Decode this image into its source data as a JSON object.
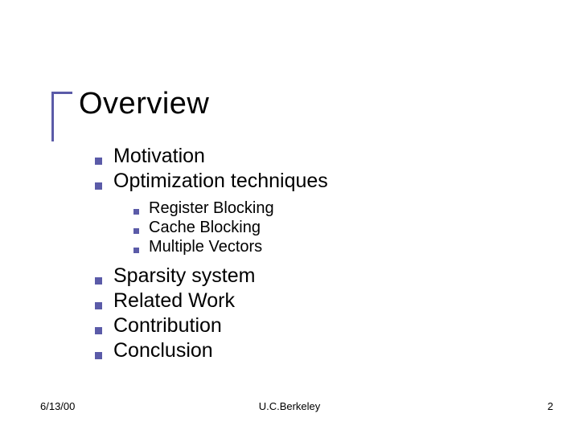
{
  "slide": {
    "title": "Overview",
    "title_fontsize": 38,
    "title_color": "#000000",
    "accent_color": "#5b5ba8",
    "accent_h_len": 26,
    "accent_v_len": 62,
    "background_color": "#ffffff"
  },
  "body": {
    "l1_fontsize": 25,
    "l2_fontsize": 20,
    "l1_bullet_color": "#5b5ba8",
    "l2_bullet_color": "#5b5ba8",
    "text_color": "#000000",
    "items": [
      {
        "level": 1,
        "text": "Motivation"
      },
      {
        "level": 1,
        "text": "Optimization techniques"
      },
      {
        "level": 2,
        "text": "Register Blocking"
      },
      {
        "level": 2,
        "text": "Cache Blocking"
      },
      {
        "level": 2,
        "text": "Multiple Vectors"
      },
      {
        "level": 1,
        "text": "Sparsity system"
      },
      {
        "level": 1,
        "text": "Related Work"
      },
      {
        "level": 1,
        "text": "Contribution"
      },
      {
        "level": 1,
        "text": "Conclusion"
      }
    ]
  },
  "footer": {
    "date": "6/13/00",
    "center": "U.C.Berkeley",
    "page": "2",
    "fontsize": 13,
    "color": "#000000"
  }
}
